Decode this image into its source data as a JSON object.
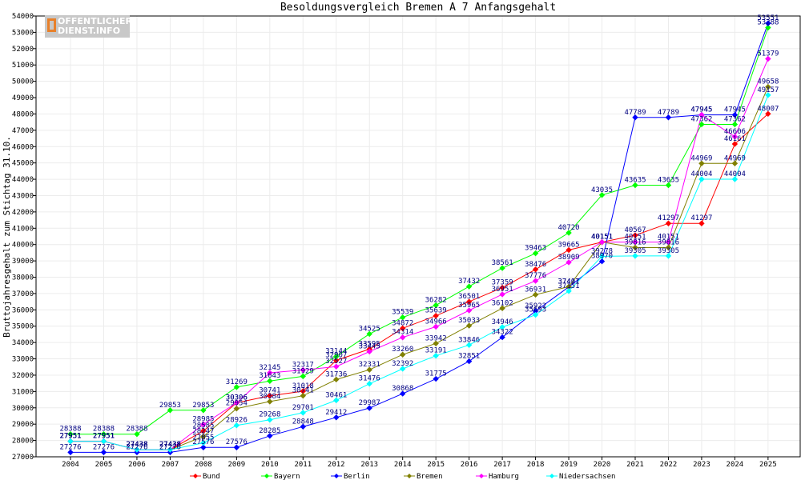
{
  "chart_data": {
    "type": "line",
    "title": "Besoldungsvergleich Bremen A 7 Anfangsgehalt",
    "ylabel": "Bruttojahresgehalt zum Stichtag 31.10.",
    "xlabel": "",
    "ylim": [
      27000,
      54000
    ],
    "yticks": [
      27000,
      28000,
      29000,
      30000,
      31000,
      32000,
      33000,
      34000,
      35000,
      36000,
      37000,
      38000,
      39000,
      40000,
      41000,
      42000,
      43000,
      44000,
      45000,
      46000,
      47000,
      48000,
      49000,
      50000,
      51000,
      52000,
      53000,
      54000
    ],
    "categories": [
      "2004",
      "2005",
      "2006",
      "2007",
      "2008",
      "2009",
      "2010",
      "2011",
      "2012",
      "2013",
      "2014",
      "2015",
      "2016",
      "2017",
      "2018",
      "2019",
      "2020",
      "2021",
      "2022",
      "2023",
      "2024",
      "2025"
    ],
    "grid": true,
    "legend_position": "bottom",
    "series": [
      {
        "name": "Bund",
        "color": "#ff0000",
        "values": [
          27951,
          27951,
          27438,
          27438,
          28585,
          30306,
          30741,
          31018,
          32907,
          33595,
          34872,
          35639,
          36501,
          37359,
          38476,
          39665,
          40151,
          40567,
          41297,
          41297,
          46161,
          48007
        ]
      },
      {
        "name": "Bayern",
        "color": "#00ff00",
        "values": [
          28388,
          28388,
          28388,
          29853,
          29853,
          31269,
          31643,
          31929,
          33144,
          34525,
          35539,
          36282,
          37432,
          38561,
          39463,
          40720,
          43035,
          43635,
          43635,
          47362,
          47362,
          53288
        ]
      },
      {
        "name": "Berlin",
        "color": "#0000ff",
        "values": [
          27276,
          27276,
          27276,
          27276,
          27576,
          27576,
          28285,
          28848,
          29412,
          29987,
          30868,
          31775,
          32851,
          34322,
          35922,
          37401,
          38970,
          47789,
          47789,
          47945,
          47945,
          53551
        ]
      },
      {
        "name": "Bremen",
        "color": "#808000",
        "values": [
          27951,
          27951,
          27438,
          27438,
          28247,
          29954,
          30384,
          30741,
          31736,
          32331,
          33260,
          33942,
          35033,
          36102,
          36931,
          37417,
          40151,
          39816,
          39816,
          44969,
          44969,
          49658
        ]
      },
      {
        "name": "Hamburg",
        "color": "#ff00ff",
        "values": [
          27951,
          27951,
          27438,
          27438,
          28985,
          30306,
          32145,
          32317,
          32527,
          33445,
          34314,
          34966,
          35965,
          36951,
          37776,
          38909,
          40151,
          40151,
          40151,
          47945,
          46606,
          51379
        ]
      },
      {
        "name": "Niedersachsen",
        "color": "#00ffff",
        "values": [
          27951,
          27951,
          27438,
          27438,
          27855,
          28926,
          29268,
          29701,
          30461,
          31476,
          32392,
          33191,
          33846,
          34946,
          35693,
          37151,
          39278,
          39305,
          39305,
          44004,
          44004,
          49157
        ]
      }
    ]
  },
  "logo": {
    "line1": "OFFENTLICHER",
    "line2": "DIENST.INFO"
  }
}
